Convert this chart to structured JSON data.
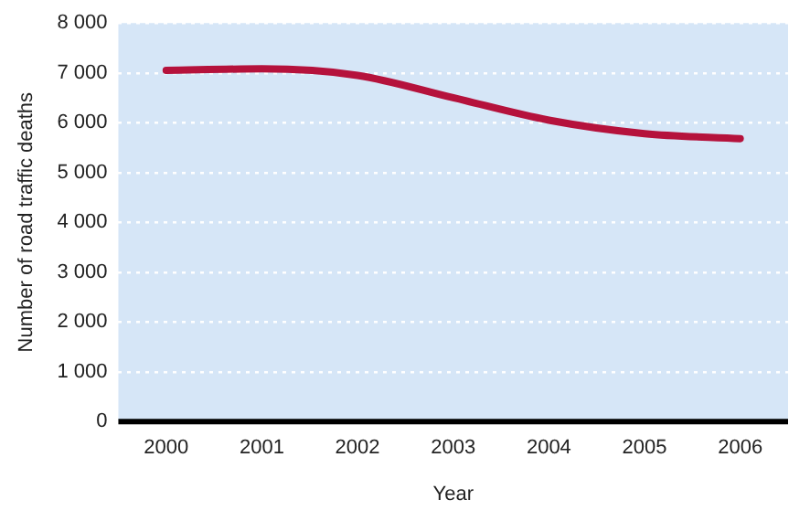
{
  "chart_data": {
    "type": "line",
    "xlabel": "Year",
    "ylabel": "Number of road traffic deaths",
    "categories": [
      "2000",
      "2001",
      "2002",
      "2003",
      "2004",
      "2005",
      "2006"
    ],
    "series": [
      {
        "color": "#b5123c",
        "values": [
          7050,
          7080,
          6950,
          6500,
          6050,
          5780,
          5680
        ]
      }
    ],
    "ylim": [
      0,
      8000
    ],
    "yticks": [
      {
        "value": 0,
        "label": "0"
      },
      {
        "value": 1000,
        "label": "1 000"
      },
      {
        "value": 2000,
        "label": "2 000"
      },
      {
        "value": 3000,
        "label": "3 000"
      },
      {
        "value": 4000,
        "label": "4 000"
      },
      {
        "value": 5000,
        "label": "5 000"
      },
      {
        "value": 6000,
        "label": "6 000"
      },
      {
        "value": 7000,
        "label": "7 000"
      },
      {
        "value": 8000,
        "label": "8 000"
      }
    ],
    "grid": "y",
    "legend": false,
    "marker": "none",
    "line_style": "solid"
  }
}
